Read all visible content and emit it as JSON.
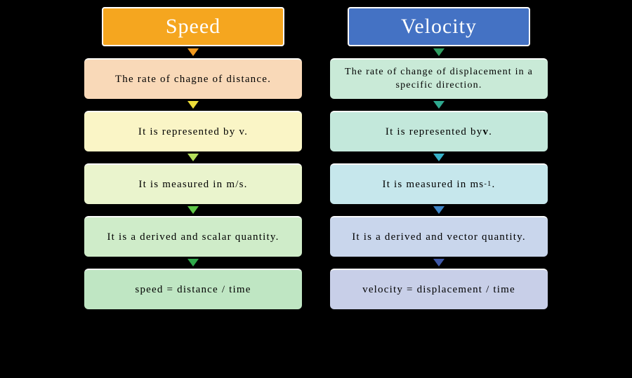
{
  "type": "infographic",
  "layout": "two-column comparison flowchart",
  "background_color": "#000000",
  "columns": [
    {
      "header": {
        "text": "Speed",
        "bg_color": "#f5a61f",
        "text_color": "#ffffff",
        "font_size": 30
      },
      "arrows": [
        "#f19a1f",
        "#eedd3a",
        "#b5e05a",
        "#5fc648",
        "#2fa84a"
      ],
      "cards": [
        {
          "html": "The rate of chagne of distance.",
          "bg_color": "#f9d9b8",
          "font_size": 15
        },
        {
          "html": "It is represented by v.",
          "bg_color": "#faf5c6",
          "font_size": 15
        },
        {
          "html": "It is measured in m/s.",
          "bg_color": "#eaf4cd",
          "font_size": 15
        },
        {
          "html": "It is a derived and scalar quantity.",
          "bg_color": "#cfecc9",
          "font_size": 15
        },
        {
          "html": "speed = distance / time",
          "bg_color": "#bfe6c3",
          "font_size": 15
        }
      ]
    },
    {
      "header": {
        "text": "Velocity",
        "bg_color": "#4472c4",
        "text_color": "#ffffff",
        "font_size": 30
      },
      "arrows": [
        "#2f9e62",
        "#2fa98f",
        "#37b2c8",
        "#3d85c6",
        "#3f58a8"
      ],
      "cards": [
        {
          "html": "The rate of change of displacement in a specific direction.",
          "bg_color": "#c9ead7",
          "font_size": 14
        },
        {
          "html": "It is represented by <b>v</b>.",
          "bg_color": "#c3e8db",
          "font_size": 15
        },
        {
          "html": "It is measured in ms<sup>-1</sup>.",
          "bg_color": "#c6e7ec",
          "font_size": 15
        },
        {
          "html": "It is a derived and vector quantity.",
          "bg_color": "#c9d6ec",
          "font_size": 15
        },
        {
          "html": "velocity = displacement / time",
          "bg_color": "#c8cfe8",
          "font_size": 15
        }
      ]
    }
  ]
}
